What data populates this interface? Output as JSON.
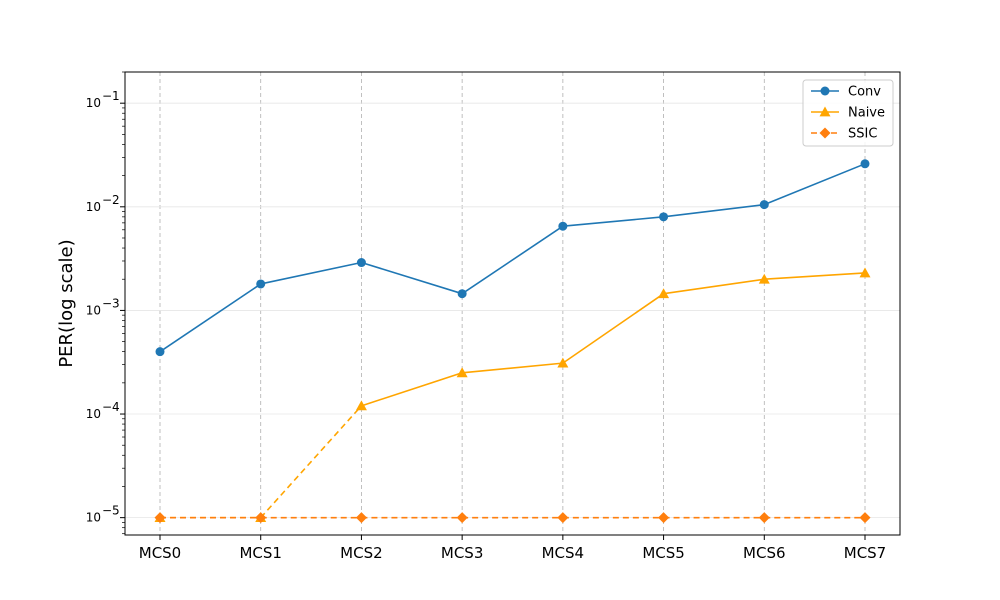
{
  "chart_data": {
    "type": "line",
    "title": "",
    "xlabel": "",
    "ylabel": "PER(log scale)",
    "yscale": "log",
    "ylim": [
      6.8e-06,
      0.2
    ],
    "y_tick_labels": [
      {
        "base": "10",
        "exp": "−1",
        "value": 0.1
      },
      {
        "base": "10",
        "exp": "−2",
        "value": 0.01
      },
      {
        "base": "10",
        "exp": "−3",
        "value": 0.001
      },
      {
        "base": "10",
        "exp": "−4",
        "value": 0.0001
      },
      {
        "base": "10",
        "exp": "−5",
        "value": 1e-05
      }
    ],
    "categories": [
      "MCS0",
      "MCS1",
      "MCS2",
      "MCS3",
      "MCS4",
      "MCS5",
      "MCS6",
      "MCS7"
    ],
    "grid": {
      "x": "dashed",
      "y": "solid-light"
    },
    "legend_position": "top-right",
    "series": [
      {
        "name": "Conv",
        "color": "#1f77b4",
        "marker": "circle",
        "values": [
          0.0004,
          0.0018,
          0.0029,
          0.00145,
          0.0065,
          0.008,
          0.0105,
          0.026
        ],
        "segment_styles": [
          "solid",
          "solid",
          "solid",
          "solid",
          "solid",
          "solid",
          "solid"
        ]
      },
      {
        "name": "Naive",
        "color": "#ffa500",
        "marker": "triangle",
        "values": [
          1e-05,
          1e-05,
          0.00012,
          0.00025,
          0.00031,
          0.00145,
          0.002,
          0.0023
        ],
        "segment_styles": [
          "dashed",
          "dashed",
          "solid",
          "solid",
          "solid",
          "solid",
          "solid"
        ]
      },
      {
        "name": "SSIC",
        "color": "#ff7f0e",
        "marker": "diamond",
        "values": [
          1e-05,
          1e-05,
          1e-05,
          1e-05,
          1e-05,
          1e-05,
          1e-05,
          1e-05
        ],
        "segment_styles": [
          "dashed",
          "dashed",
          "dashed",
          "dashed",
          "dashed",
          "dashed",
          "dashed"
        ]
      }
    ]
  }
}
